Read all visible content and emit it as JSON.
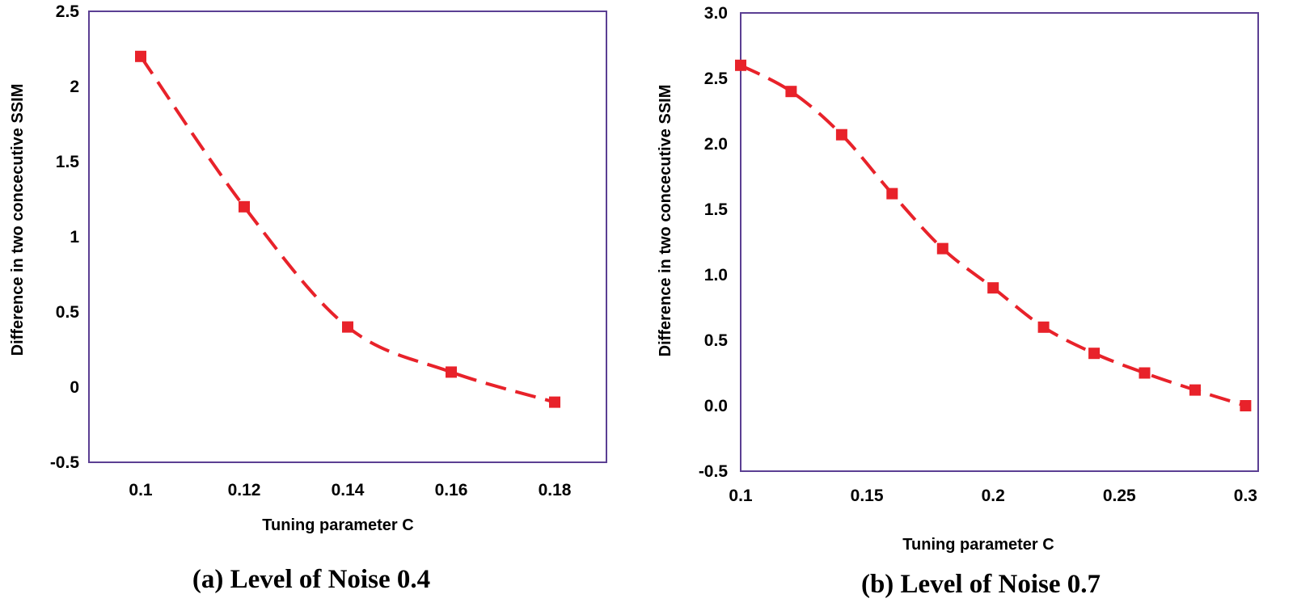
{
  "chart_data": [
    {
      "type": "line",
      "caption": "(a) Level of Noise 0.4",
      "xlabel": "Tuning parameter C",
      "ylabel": "Difference in two concecutive SSIM",
      "xlim": [
        0.09,
        0.19
      ],
      "ylim": [
        -0.5,
        2.5
      ],
      "xticks": [
        "0.1",
        "0.12",
        "0.14",
        "0.16",
        "0.18"
      ],
      "yticks": [
        "-0.5",
        "0",
        "0.5",
        "1",
        "1.5",
        "2",
        "2.5"
      ],
      "grid": false,
      "legend": "none",
      "series": [
        {
          "color": "#e8222a",
          "marker": "square",
          "line": "dashed",
          "x": [
            0.1,
            0.12,
            0.14,
            0.16,
            0.18
          ],
          "y": [
            2.2,
            1.2,
            0.4,
            0.1,
            -0.1
          ]
        }
      ]
    },
    {
      "type": "line",
      "caption": "(b) Level of Noise 0.7",
      "xlabel": "Tuning parameter C",
      "ylabel": "Difference in two concecutive SSIM",
      "xlim": [
        0.1,
        0.305
      ],
      "ylim": [
        -0.5,
        3.0
      ],
      "xticks": [
        "0.1",
        "0.15",
        "0.2",
        "0.25",
        "0.3"
      ],
      "yticks": [
        "-0.5",
        "0.0",
        "0.5",
        "1.0",
        "1.5",
        "2.0",
        "2.5",
        "3.0"
      ],
      "grid": false,
      "legend": "none",
      "series": [
        {
          "color": "#e8222a",
          "marker": "square",
          "line": "dashed",
          "x": [
            0.1,
            0.12,
            0.14,
            0.16,
            0.18,
            0.2,
            0.22,
            0.24,
            0.26,
            0.28,
            0.3
          ],
          "y": [
            2.6,
            2.4,
            2.07,
            1.62,
            1.2,
            0.9,
            0.6,
            0.4,
            0.25,
            0.12,
            0.0
          ]
        }
      ]
    }
  ]
}
